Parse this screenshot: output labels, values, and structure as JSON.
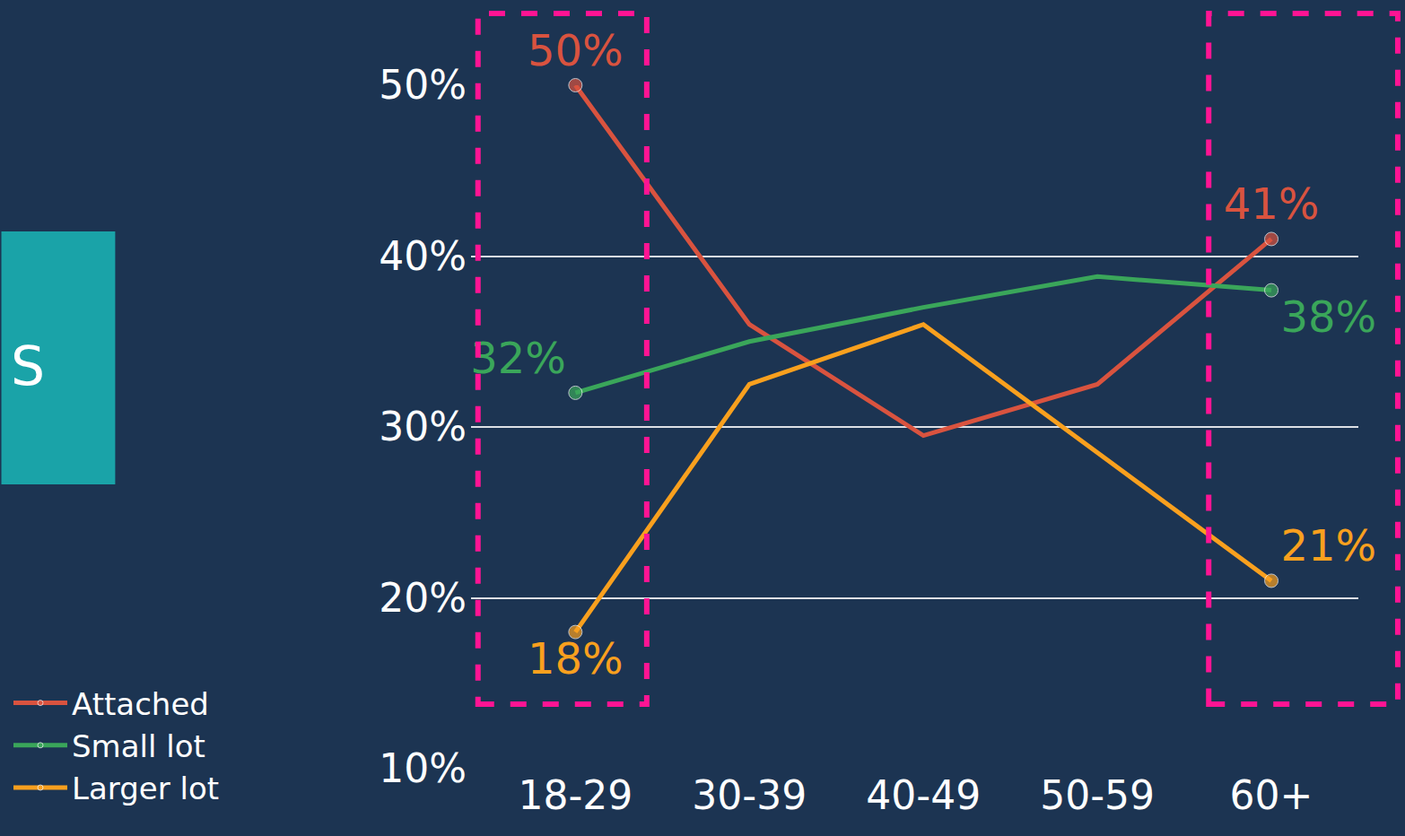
{
  "chart_data": {
    "type": "line",
    "categories": [
      "18-29",
      "30-39",
      "40-49",
      "50-59",
      "60+"
    ],
    "series": [
      {
        "name": "Attached",
        "color": "#d9533f",
        "values": [
          50,
          36,
          29.5,
          32.5,
          41
        ],
        "value_labels": [
          "50%",
          null,
          null,
          null,
          "41%"
        ]
      },
      {
        "name": "Small lot",
        "color": "#3aa65a",
        "values": [
          32,
          35,
          37,
          38.8,
          38
        ],
        "value_labels": [
          "32%",
          null,
          null,
          null,
          "38%"
        ]
      },
      {
        "name": "Larger lot",
        "color": "#f9a01e",
        "values": [
          18,
          32.5,
          36,
          28.5,
          21
        ],
        "value_labels": [
          "18%",
          null,
          null,
          null,
          "21%"
        ]
      }
    ],
    "ylim": [
      10,
      50
    ],
    "yticks": [
      {
        "value": 10,
        "label": "10%"
      },
      {
        "value": 20,
        "label": "20%"
      },
      {
        "value": 30,
        "label": "30%"
      },
      {
        "value": 40,
        "label": "40%"
      },
      {
        "value": 50,
        "label": "50%"
      }
    ],
    "grid": true,
    "legend": "bottom-left",
    "data_labels": true,
    "annotations": [
      "S"
    ]
  }
}
